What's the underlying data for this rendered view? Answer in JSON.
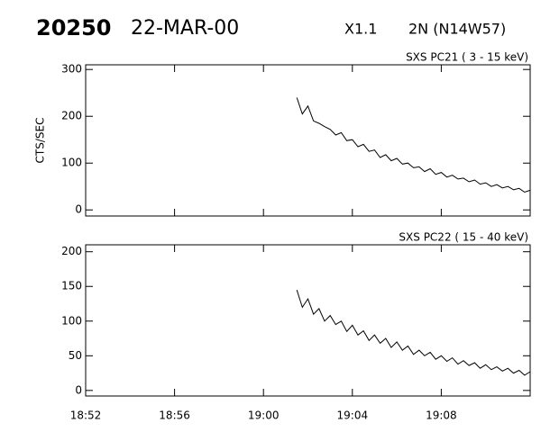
{
  "header": {
    "event": "20250",
    "date": "22-MAR-00",
    "class": "X1.1",
    "region": "2N (N14W57)"
  },
  "chart_data": [
    {
      "type": "line",
      "title": "SXS PC21 (  3 - 15 keV)",
      "ylabel": "CTS/SEC",
      "x": [
        1141.5,
        1141.75,
        1142,
        1142.25,
        1142.5,
        1142.75,
        1143,
        1143.25,
        1143.5,
        1143.75,
        1144,
        1144.25,
        1144.5,
        1144.75,
        1145,
        1145.25,
        1145.5,
        1145.75,
        1146,
        1146.25,
        1146.5,
        1146.75,
        1147,
        1147.25,
        1147.5,
        1147.75,
        1148,
        1148.25,
        1148.5,
        1148.75,
        1149,
        1149.25,
        1149.5,
        1149.75,
        1150,
        1150.25,
        1150.5,
        1150.75,
        1151,
        1151.25,
        1151.5,
        1151.75,
        1152
      ],
      "series": [
        {
          "color": "#000000",
          "values": [
            240,
            205,
            222,
            190,
            185,
            178,
            172,
            160,
            165,
            148,
            150,
            135,
            140,
            125,
            128,
            112,
            118,
            105,
            110,
            98,
            100,
            90,
            92,
            82,
            88,
            76,
            80,
            70,
            74,
            66,
            68,
            60,
            64,
            55,
            58,
            50,
            54,
            47,
            50,
            43,
            46,
            38,
            42
          ]
        }
      ],
      "xlim": [
        1132,
        1152
      ],
      "xticks": [
        1132,
        1136,
        1140,
        1144,
        1148
      ],
      "xtick_labels": false,
      "ylim": [
        -13,
        310
      ],
      "yticks": [
        0,
        100,
        200,
        300
      ]
    },
    {
      "type": "line",
      "title": "SXS PC22 ( 15 - 40 keV)",
      "x": [
        1141.5,
        1141.75,
        1142,
        1142.25,
        1142.5,
        1142.75,
        1143,
        1143.25,
        1143.5,
        1143.75,
        1144,
        1144.25,
        1144.5,
        1144.75,
        1145,
        1145.25,
        1145.5,
        1145.75,
        1146,
        1146.25,
        1146.5,
        1146.75,
        1147,
        1147.25,
        1147.5,
        1147.75,
        1148,
        1148.25,
        1148.5,
        1148.75,
        1149,
        1149.25,
        1149.5,
        1149.75,
        1150,
        1150.25,
        1150.5,
        1150.75,
        1151,
        1151.25,
        1151.5,
        1151.75,
        1152
      ],
      "series": [
        {
          "color": "#000000",
          "values": [
            145,
            120,
            132,
            110,
            118,
            100,
            108,
            95,
            100,
            85,
            94,
            80,
            86,
            72,
            80,
            68,
            75,
            62,
            70,
            58,
            64,
            52,
            58,
            50,
            55,
            45,
            50,
            42,
            47,
            38,
            43,
            36,
            40,
            32,
            37,
            30,
            34,
            28,
            32,
            25,
            29,
            22,
            27
          ]
        }
      ],
      "xlim": [
        1132,
        1152
      ],
      "xticks": [
        {
          "value": 1132,
          "label": "18:52"
        },
        {
          "value": 1136,
          "label": "18:56"
        },
        {
          "value": 1140,
          "label": "19:00"
        },
        {
          "value": 1144,
          "label": "19:04"
        },
        {
          "value": 1148,
          "label": "19:08"
        }
      ],
      "xtick_labels": true,
      "ylim": [
        -8,
        210
      ],
      "yticks": [
        0,
        50,
        100,
        150,
        200
      ]
    }
  ]
}
